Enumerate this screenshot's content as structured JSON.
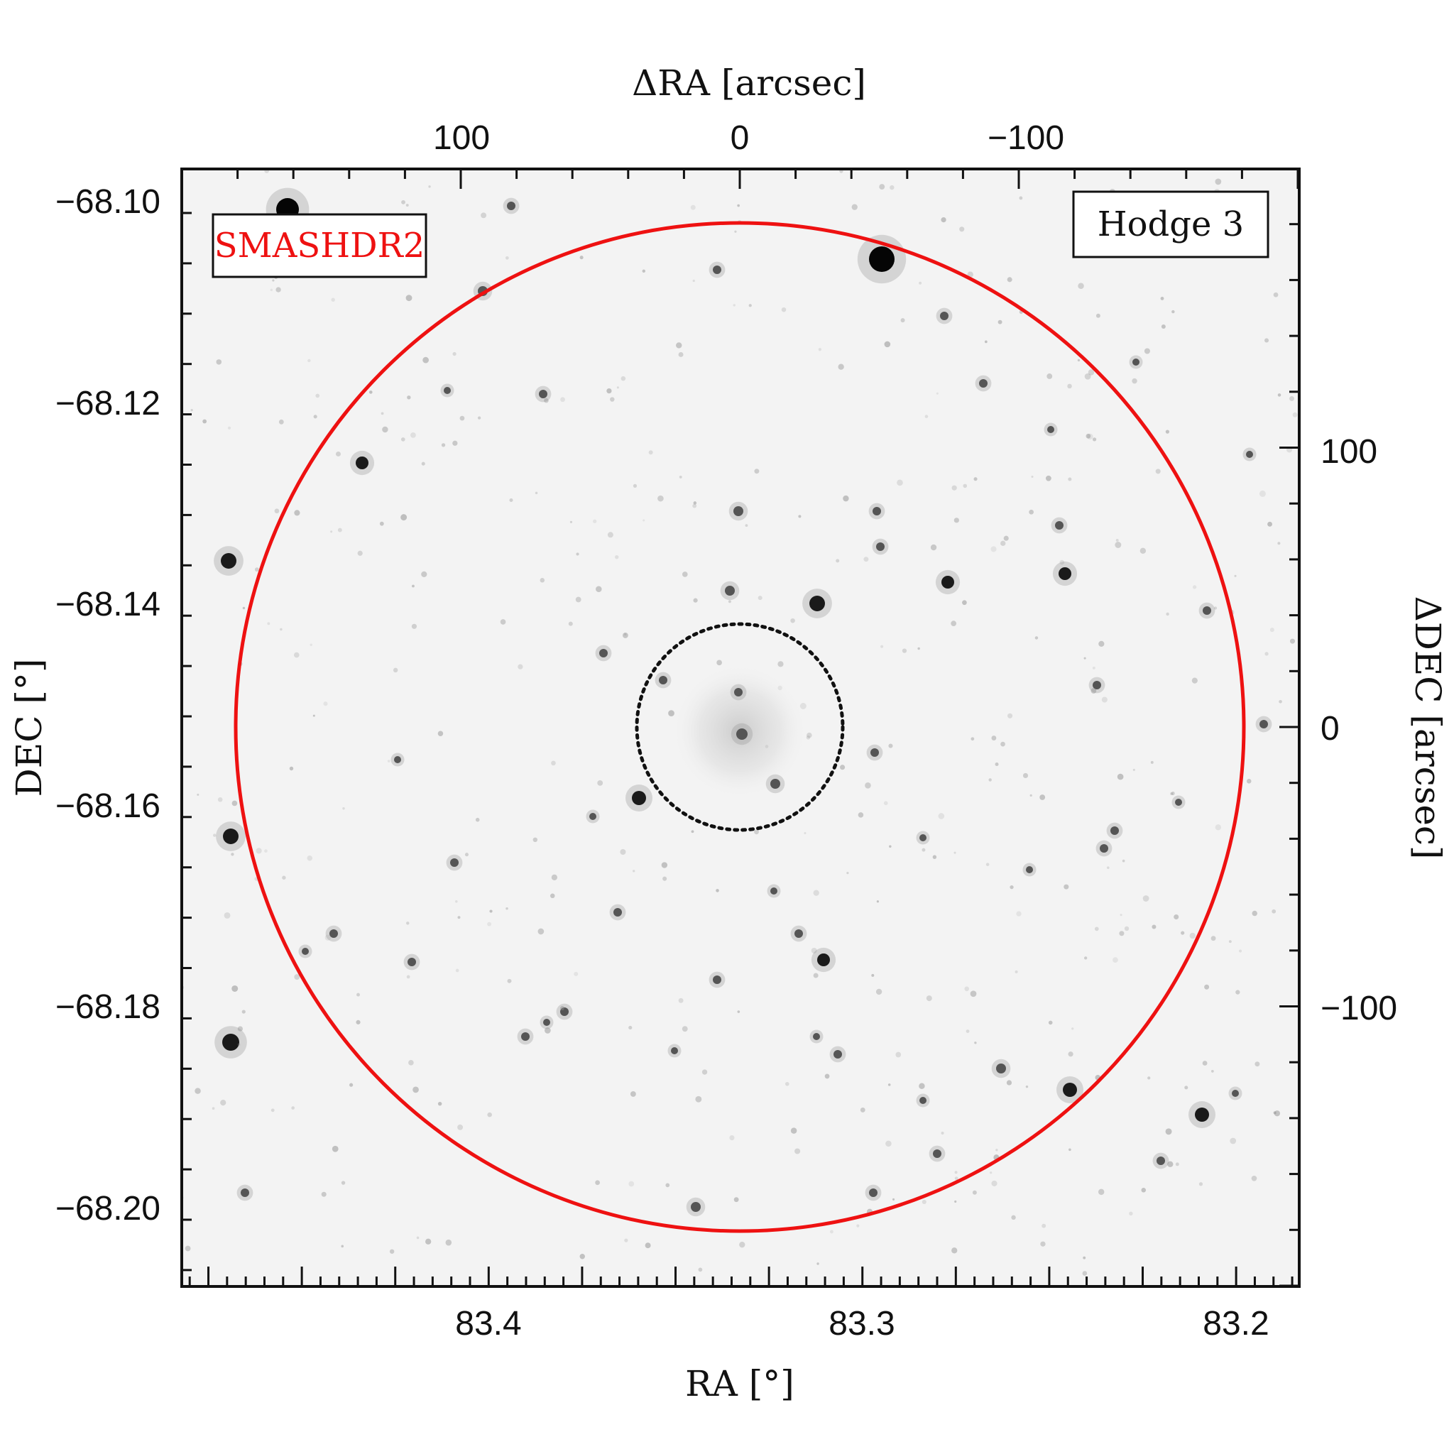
{
  "figure": {
    "label_left": "SMASHDR2",
    "label_right": "Hodge 3",
    "label_left_color": "#ee1111",
    "circle_color": "#ee1111",
    "inner_circle_color": "#111111",
    "background": "#f3f3f3"
  },
  "axes": {
    "bottom": {
      "title": "RA [°]",
      "ticks": [
        "83.4",
        "83.3",
        "83.2"
      ]
    },
    "left": {
      "title": "DEC [°]",
      "ticks": [
        "−68.10",
        "−68.12",
        "−68.14",
        "−68.16",
        "−68.18",
        "−68.20"
      ]
    },
    "top": {
      "title": "ΔRA [arcsec]",
      "ticks": [
        "100",
        "0",
        "−100"
      ]
    },
    "right": {
      "title": "ΔDEC [arcsec]",
      "ticks": [
        "100",
        "0",
        "−100"
      ]
    }
  }
}
